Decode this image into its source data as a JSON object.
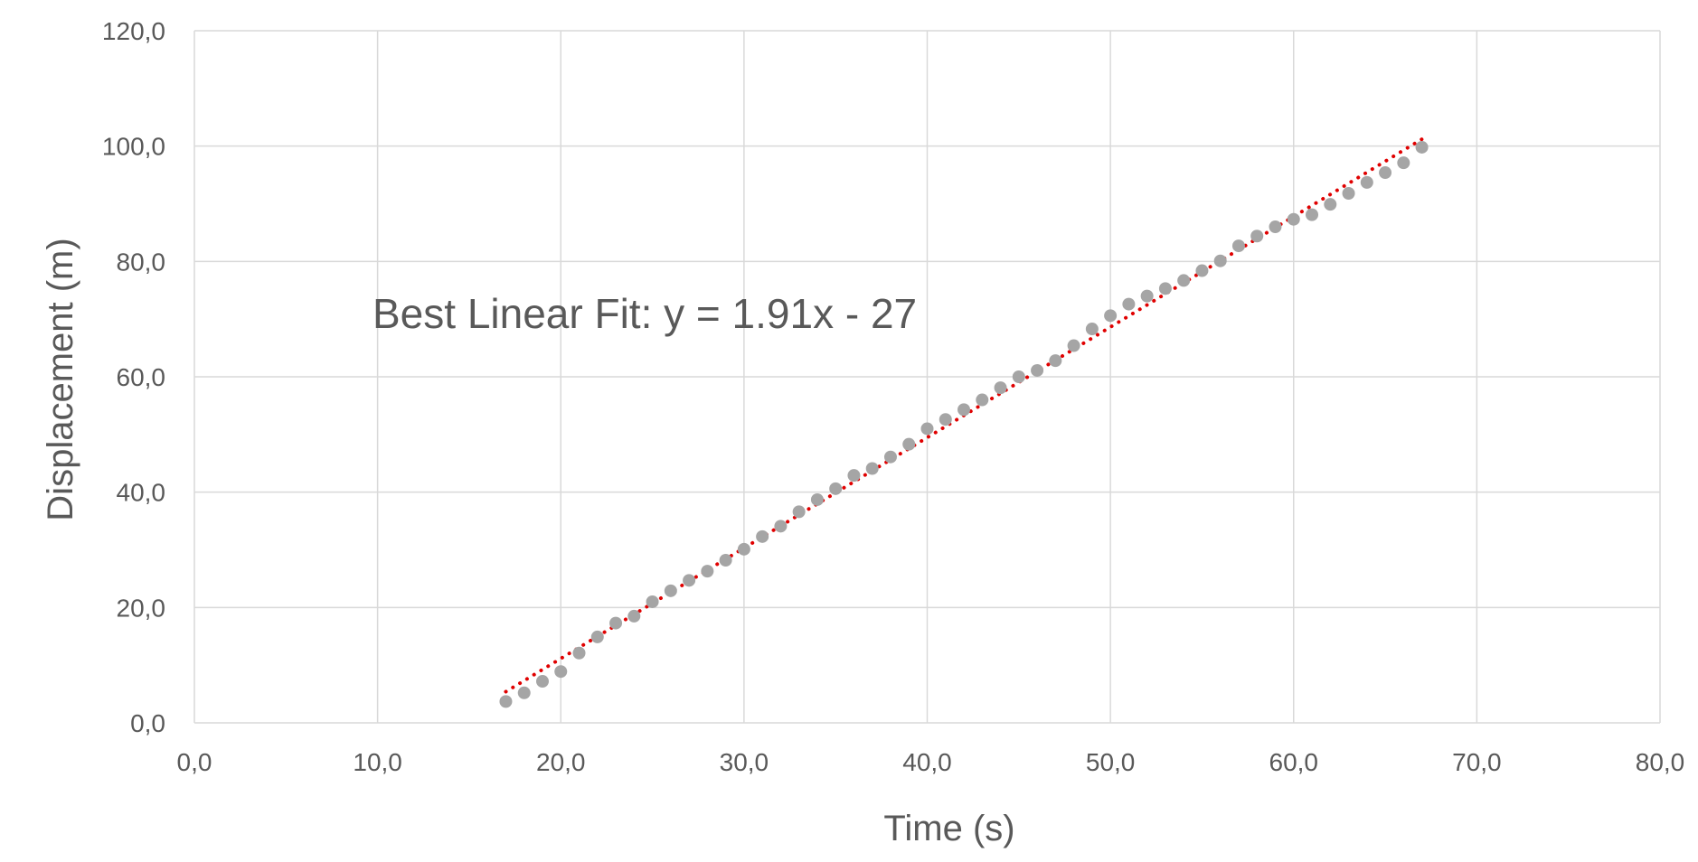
{
  "chart_data": {
    "type": "scatter",
    "title": "",
    "xlabel": "Time (s)",
    "ylabel": "Displacement (m)",
    "xlim": [
      0,
      80
    ],
    "ylim": [
      0,
      120
    ],
    "x_ticks": [
      "0,0",
      "10,0",
      "20,0",
      "30,0",
      "40,0",
      "50,0",
      "60,0",
      "70,0",
      "80,0"
    ],
    "y_ticks": [
      "0,0",
      "20,0",
      "40,0",
      "60,0",
      "80,0",
      "100,0",
      "120,0"
    ],
    "grid": true,
    "annotation": "Best Linear Fit:  y = 1.91x - 27",
    "colors": {
      "points": "#a5a5a5",
      "trendline": "#e00000",
      "grid": "#d9d9d9",
      "text": "#595959"
    },
    "series": [
      {
        "x": [
          17,
          18,
          19,
          20,
          21,
          22,
          23,
          24,
          25,
          26,
          27,
          28,
          29,
          30,
          31,
          32,
          33,
          34,
          35,
          36,
          37,
          38,
          39,
          40,
          41,
          42,
          43,
          44,
          45,
          46,
          47,
          48,
          49,
          50,
          51,
          52,
          53,
          54,
          55,
          56,
          57,
          58,
          59,
          60,
          61,
          62,
          63,
          64,
          65,
          66,
          67
        ],
        "y": [
          3.7,
          5.2,
          7.2,
          8.9,
          12.1,
          14.9,
          17.3,
          18.5,
          21.0,
          22.9,
          24.7,
          26.3,
          28.2,
          30.1,
          32.3,
          34.1,
          36.6,
          38.7,
          40.6,
          42.9,
          44.1,
          46.1,
          48.3,
          51.0,
          52.6,
          54.3,
          56.0,
          58.1,
          60.0,
          61.1,
          62.8,
          65.4,
          68.3,
          70.6,
          72.6,
          74.0,
          75.3,
          76.7,
          78.4,
          80.1,
          82.7,
          84.4,
          86.0,
          87.3,
          88.1,
          89.9,
          91.8,
          93.7,
          95.4,
          97.1,
          99.8
        ]
      }
    ],
    "trendline": {
      "type": "linear",
      "x": [
        17,
        67
      ]
    }
  }
}
